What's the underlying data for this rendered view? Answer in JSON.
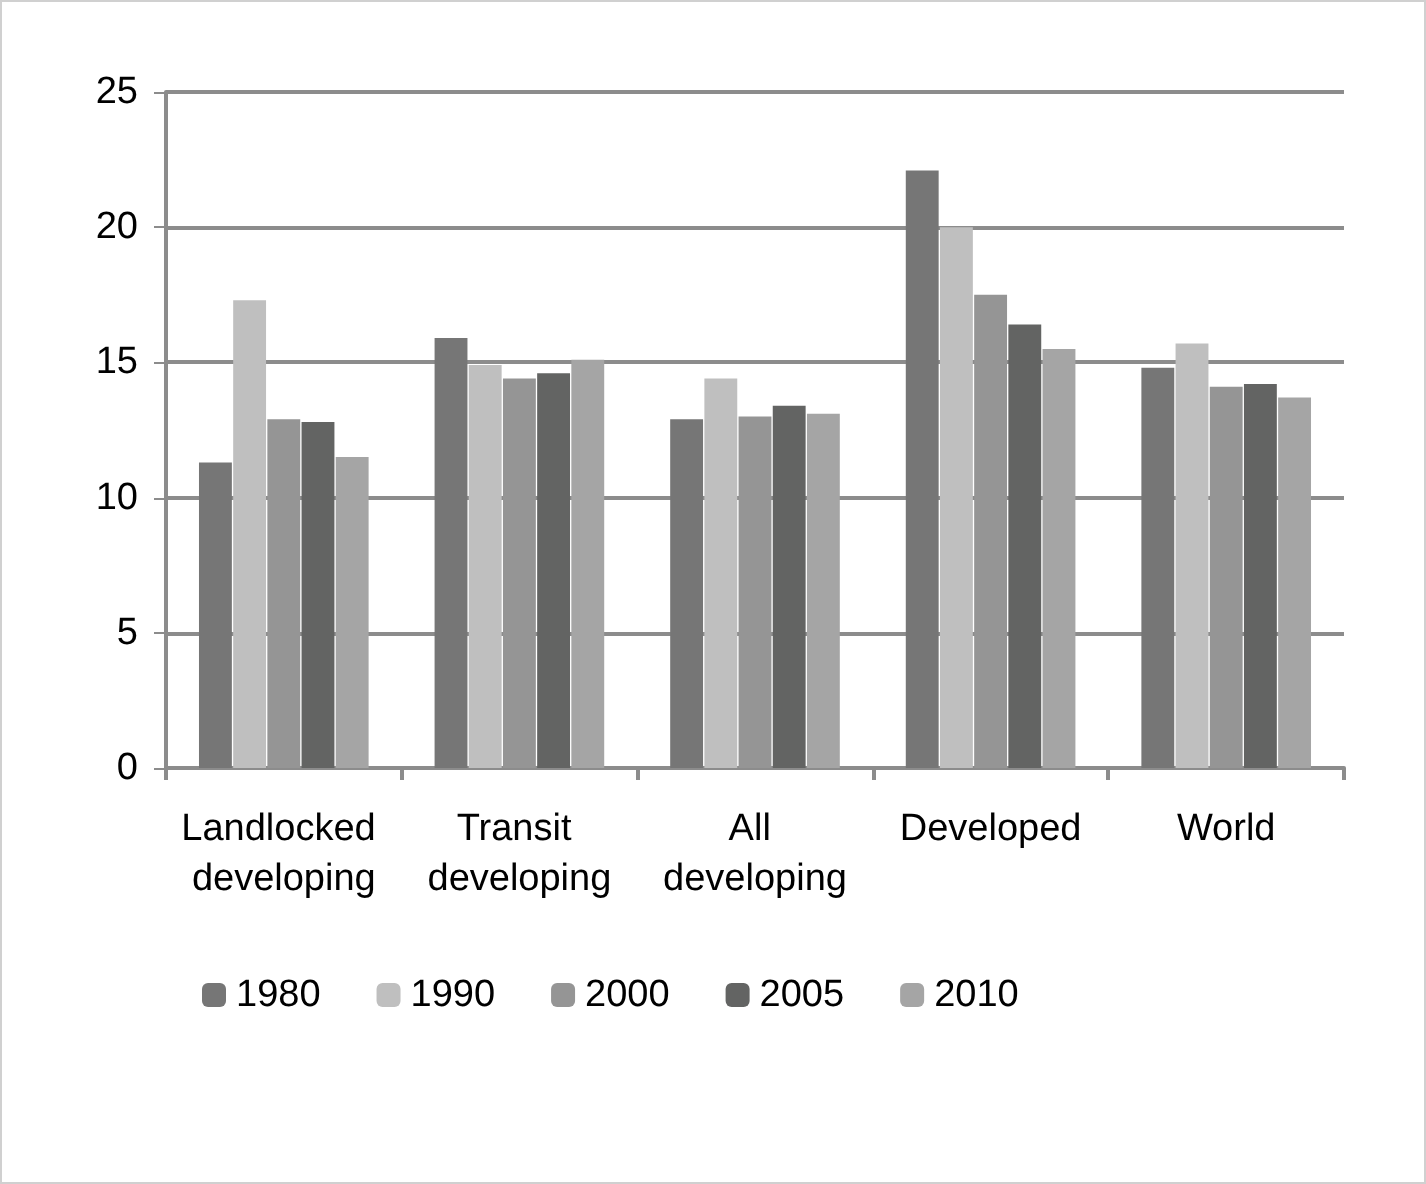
{
  "chart_data": {
    "type": "bar",
    "categories": [
      "Landlocked developing",
      "Transit developing",
      "All developing",
      "Developed",
      "World"
    ],
    "series": [
      {
        "name": "1980",
        "color": "#767676",
        "values": [
          11.3,
          15.9,
          12.9,
          22.1,
          14.8
        ]
      },
      {
        "name": "1990",
        "color": "#bfbfbf",
        "values": [
          17.3,
          14.9,
          14.4,
          20.0,
          15.7
        ]
      },
      {
        "name": "2000",
        "color": "#959595",
        "values": [
          12.9,
          14.4,
          13.0,
          17.5,
          14.1
        ]
      },
      {
        "name": "2005",
        "color": "#636463",
        "values": [
          12.8,
          14.6,
          13.4,
          16.4,
          14.2
        ]
      },
      {
        "name": "2010",
        "color": "#a5a5a5",
        "values": [
          11.5,
          15.1,
          13.1,
          15.5,
          13.7
        ]
      }
    ],
    "ylim": [
      0,
      25
    ],
    "yticks": [
      0,
      5,
      10,
      15,
      20,
      25
    ],
    "grid": "y",
    "legend": "bottom"
  }
}
